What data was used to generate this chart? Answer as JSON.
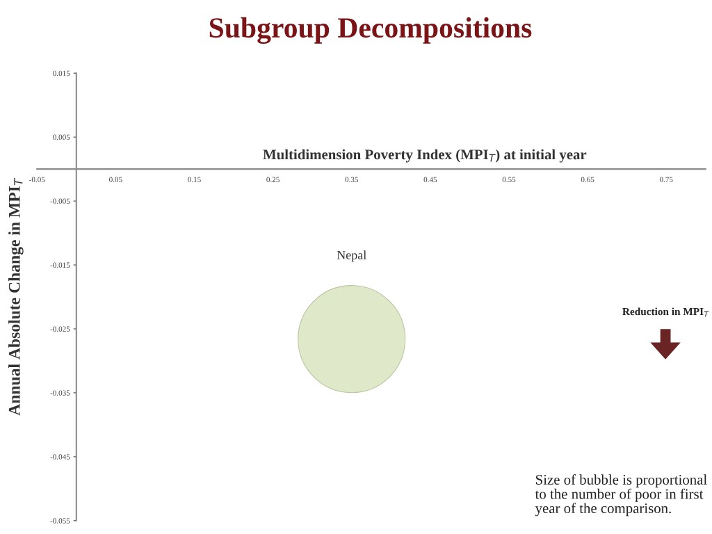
{
  "chart_data": {
    "type": "bubble",
    "title": "Subgroup Decompositions",
    "xlabel": "Multidimension Poverty Index (MPI$_{T}$) at initial year",
    "ylabel": "Annual Absolute Change in MPI$_{T}$",
    "series": [
      {
        "name": "Nepal",
        "color": "#dfe8c8",
        "x": [
          0.35
        ],
        "values": [
          -0.0266
        ],
        "sizes": [
          1
        ]
      }
    ],
    "xlim": [
      -0.05,
      0.8
    ],
    "xticks": [
      -0.05,
      0.05,
      0.15,
      0.25,
      0.35,
      0.45,
      0.55,
      0.65,
      0.75
    ],
    "ylim": [
      -0.055,
      0.015
    ],
    "yticks": [
      0.015,
      0.005,
      -0.005,
      -0.015,
      -0.025,
      -0.035,
      -0.045,
      -0.055
    ],
    "annotations": [
      "Reduction in MPI$_{T}$",
      "Size of bubble is proportional to the number of poor in first year of the comparison."
    ],
    "grid": false,
    "legend": false
  }
}
